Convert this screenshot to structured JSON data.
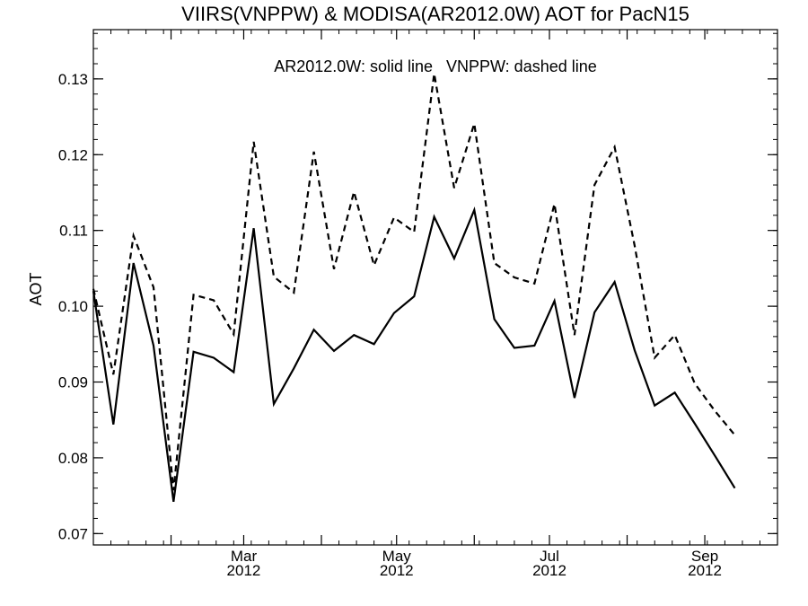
{
  "chart_data": {
    "type": "line",
    "title": "VIIRS(VNPPW) & MODISA(AR2012.0W)  AOT for PacN15",
    "ylabel": "AOT",
    "xlabel": "",
    "annotation": "AR2012.0W: solid line   VNPPW: dashed line",
    "ylim": [
      0.0685,
      0.1365
    ],
    "xlim": [
      "2012-01-01",
      "2012-09-30"
    ],
    "yticks": [
      0.07,
      0.08,
      0.09,
      0.1,
      0.11,
      0.12,
      0.13
    ],
    "ytick_labels": [
      "0.07",
      "0.08",
      "0.09",
      "0.10",
      "0.11",
      "0.12",
      "0.13"
    ],
    "xticks": [
      {
        "date": "2012-03-01",
        "month": "Mar",
        "year": "2012"
      },
      {
        "date": "2012-05-01",
        "month": "May",
        "year": "2012"
      },
      {
        "date": "2012-07-01",
        "month": "Jul",
        "year": "2012"
      },
      {
        "date": "2012-09-01",
        "month": "Sep",
        "year": "2012"
      }
    ],
    "grid": false,
    "x": [
      "2012-01-01",
      "2012-01-09",
      "2012-01-17",
      "2012-01-25",
      "2012-02-02",
      "2012-02-10",
      "2012-02-18",
      "2012-02-26",
      "2012-03-05",
      "2012-03-13",
      "2012-03-21",
      "2012-03-29",
      "2012-04-06",
      "2012-04-14",
      "2012-04-22",
      "2012-04-30",
      "2012-05-08",
      "2012-05-16",
      "2012-05-24",
      "2012-06-01",
      "2012-06-09",
      "2012-06-17",
      "2012-06-25",
      "2012-07-03",
      "2012-07-11",
      "2012-07-19",
      "2012-07-27",
      "2012-08-04",
      "2012-08-12",
      "2012-08-20",
      "2012-08-28",
      "2012-09-05",
      "2012-09-13"
    ],
    "series": [
      {
        "name": "AR2012.0W",
        "style": "solid",
        "values": [
          0.102,
          0.0844,
          0.1057,
          0.0948,
          0.0742,
          0.094,
          0.0932,
          0.0913,
          0.1103,
          0.0871,
          0.0918,
          0.0969,
          0.0941,
          0.0962,
          0.095,
          0.0991,
          0.1013,
          0.1118,
          0.1063,
          0.1127,
          0.0983,
          0.0945,
          0.0948,
          0.1007,
          0.0879,
          0.0992,
          0.1032,
          0.0942,
          0.0869,
          0.0886,
          0.0845,
          0.0803,
          0.076
        ]
      },
      {
        "name": "VNPPW",
        "style": "dashed",
        "values": [
          0.1023,
          0.091,
          0.1093,
          0.1025,
          0.0757,
          0.1015,
          0.1008,
          0.0963,
          0.1217,
          0.1039,
          0.1018,
          0.1204,
          0.1049,
          0.1151,
          0.1054,
          0.1117,
          0.1098,
          0.1307,
          0.1156,
          0.1241,
          0.1057,
          0.1038,
          0.103,
          0.1135,
          0.0962,
          0.116,
          0.121,
          0.108,
          0.0932,
          0.0962,
          0.0898,
          0.0862,
          0.083
        ]
      }
    ]
  }
}
